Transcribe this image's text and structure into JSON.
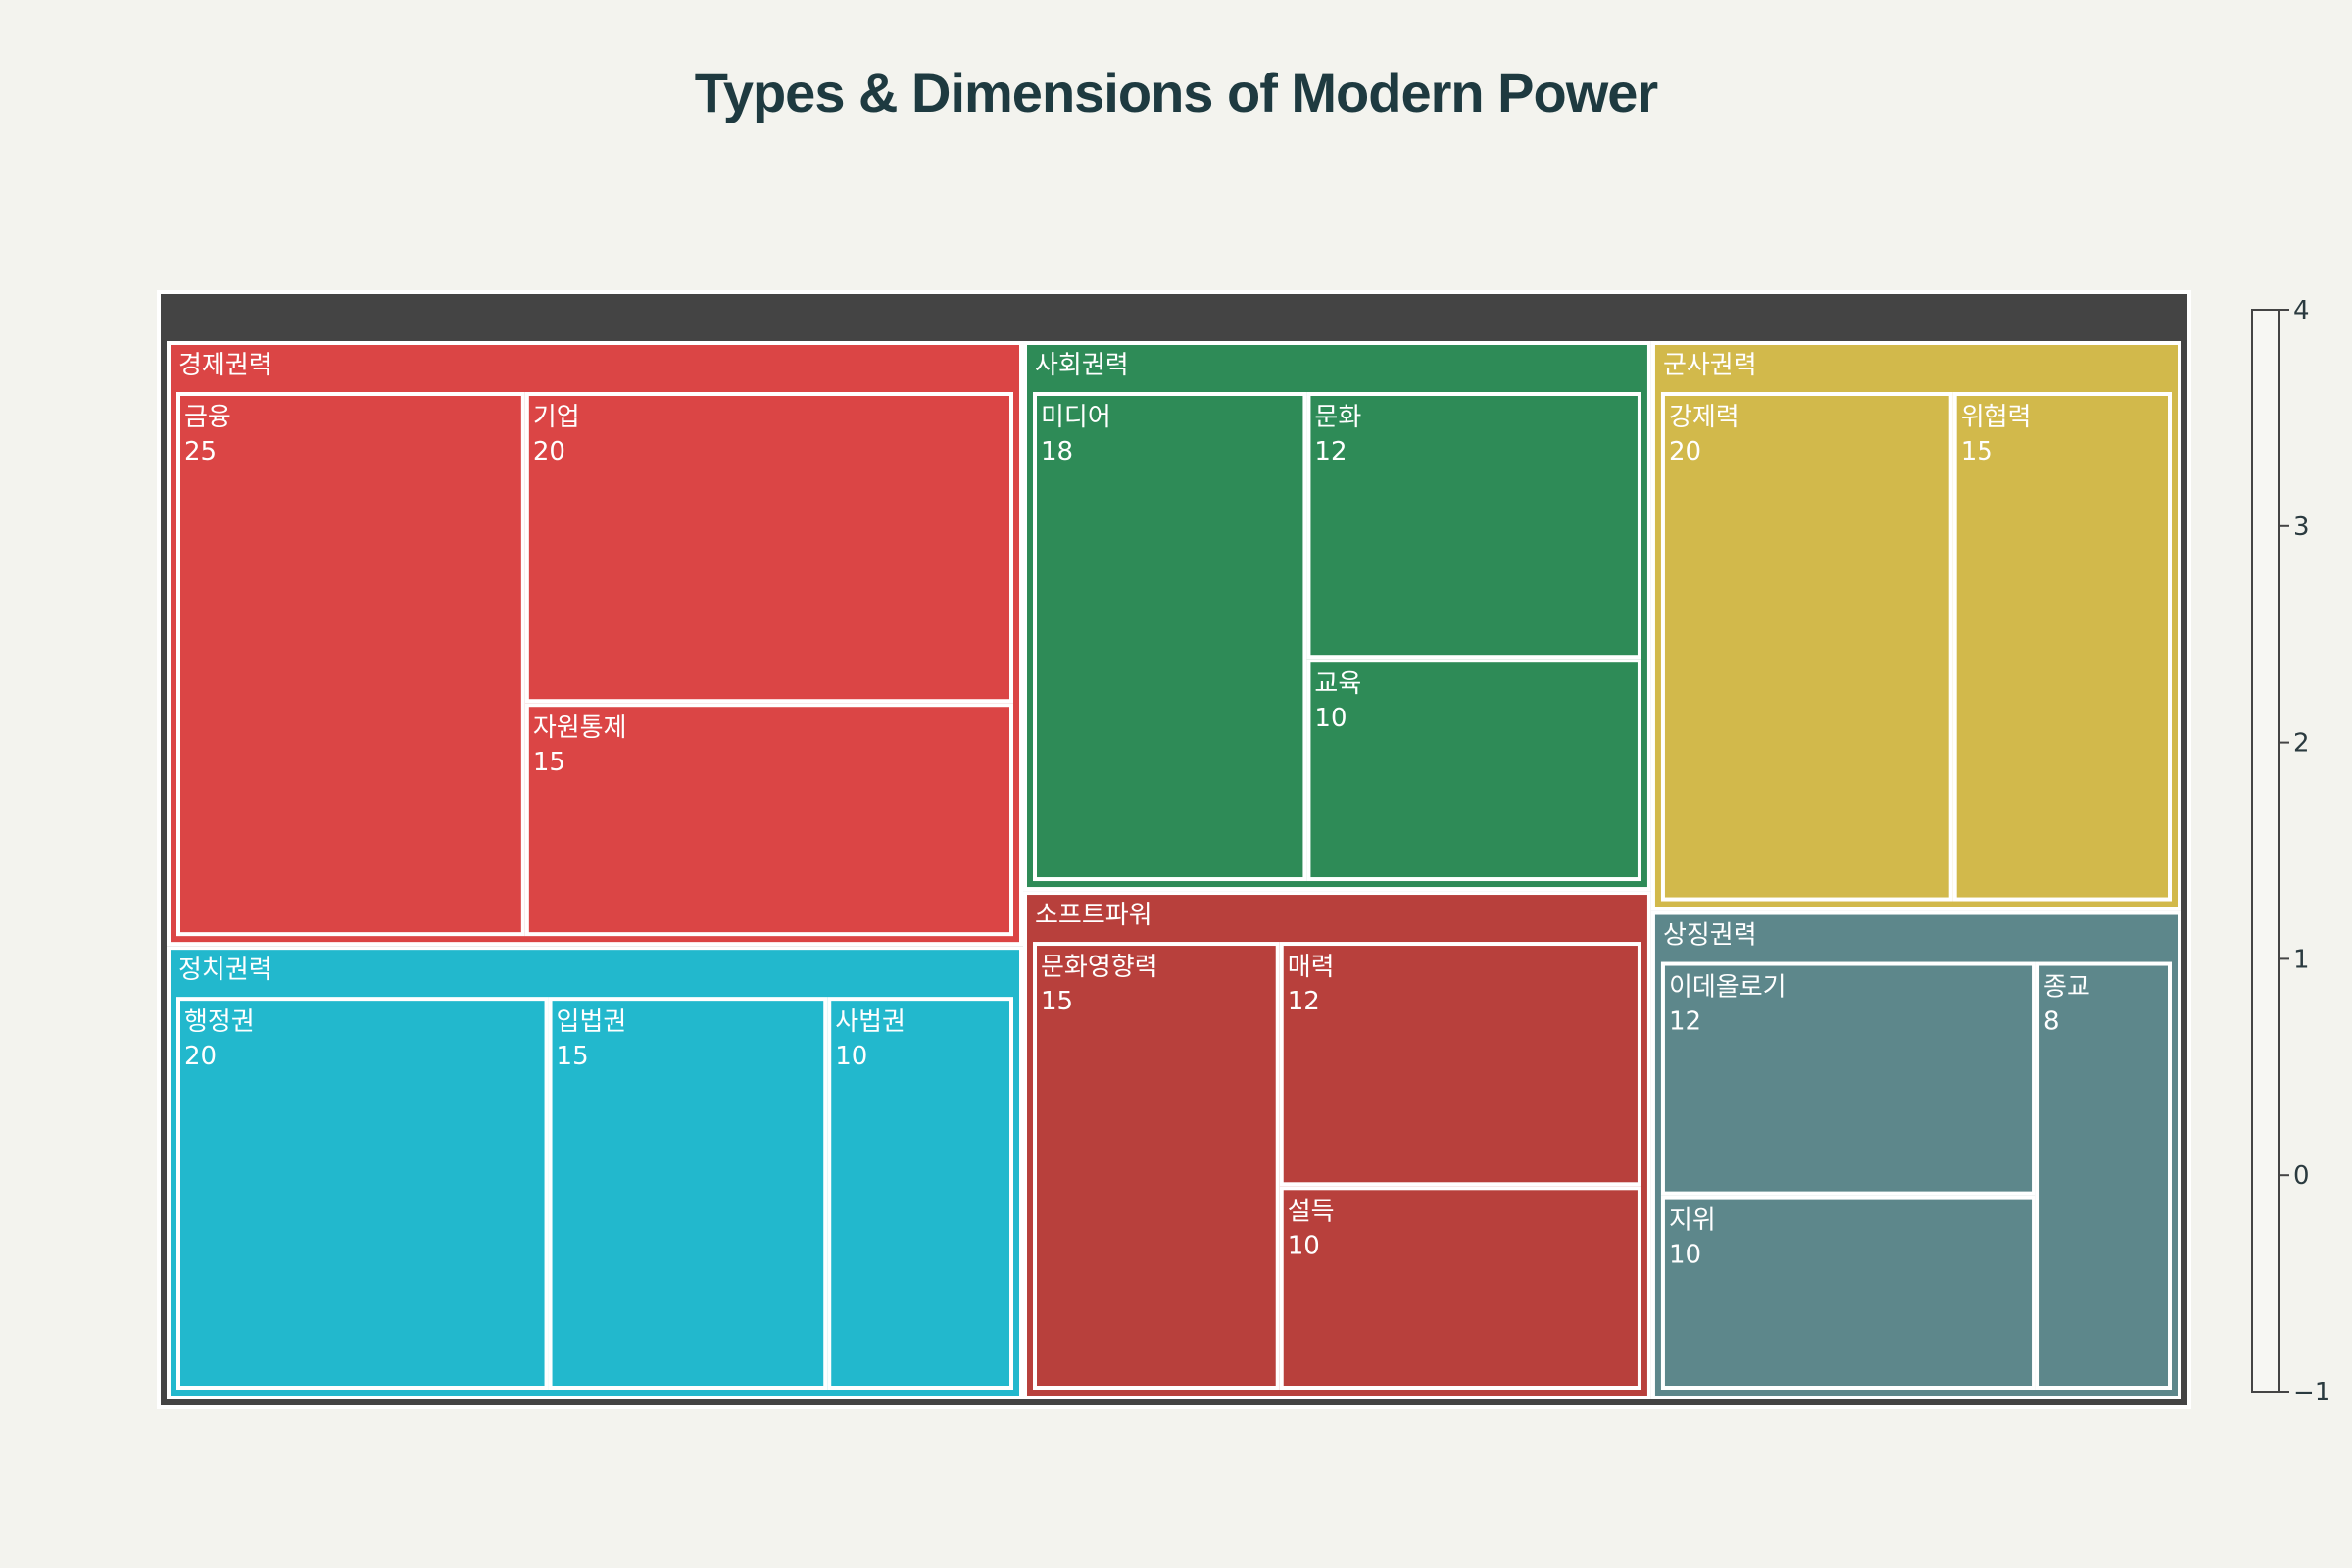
{
  "chart_data": {
    "type": "treemap",
    "title": "Types & Dimensions of Modern Power",
    "groups": [
      {
        "name": "경제권력",
        "color": "#db4545",
        "children": [
          {
            "name": "금융",
            "value": 25
          },
          {
            "name": "기업",
            "value": 20
          },
          {
            "name": "자원통제",
            "value": 15
          }
        ]
      },
      {
        "name": "정치권력",
        "color": "#22b8cd",
        "children": [
          {
            "name": "행정권",
            "value": 20
          },
          {
            "name": "입법권",
            "value": 15
          },
          {
            "name": "사법권",
            "value": 10
          }
        ]
      },
      {
        "name": "사회권력",
        "color": "#2e8b57",
        "children": [
          {
            "name": "미디어",
            "value": 18
          },
          {
            "name": "문화",
            "value": 12
          },
          {
            "name": "교육",
            "value": 10
          }
        ]
      },
      {
        "name": "소프트파워",
        "color": "#b8403c",
        "children": [
          {
            "name": "문화영향력",
            "value": 15
          },
          {
            "name": "매력",
            "value": 12
          },
          {
            "name": "설득",
            "value": 10
          }
        ]
      },
      {
        "name": "군사권력",
        "color": "#d2b94b",
        "children": [
          {
            "name": "강제력",
            "value": 20
          },
          {
            "name": "위협력",
            "value": 15
          }
        ]
      },
      {
        "name": "상징권력",
        "color": "#5d878b",
        "children": [
          {
            "name": "이데올로기",
            "value": 12
          },
          {
            "name": "지위",
            "value": 10
          },
          {
            "name": "종교",
            "value": 8
          }
        ]
      }
    ],
    "colorbar": {
      "range": [
        -1,
        4
      ],
      "ticks": [
        "4",
        "3",
        "2",
        "1",
        "0",
        "−1"
      ]
    }
  }
}
